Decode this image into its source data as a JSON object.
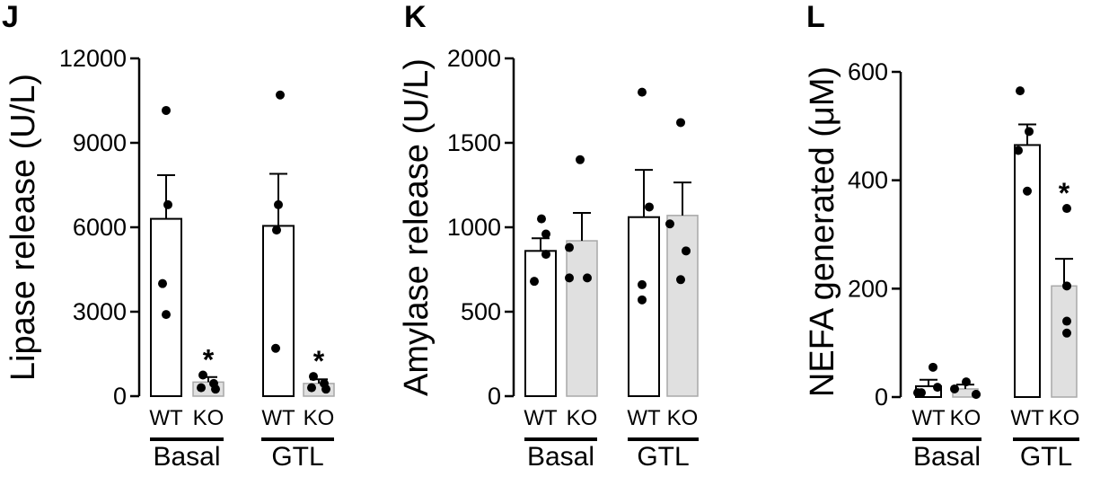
{
  "chart_data": [
    {
      "type": "bar",
      "panel": "J",
      "ylabel": "Lipase release (U/L)",
      "ylim": [
        0,
        12000
      ],
      "yticks": [
        0,
        3000,
        6000,
        9000,
        12000
      ],
      "ytick_labels": [
        "0",
        "3000",
        "6000",
        "9000",
        "12000"
      ],
      "groups": [
        "Basal",
        "GTL"
      ],
      "categories": [
        "WT",
        "KO",
        "WT",
        "KO"
      ],
      "fill_colors": [
        "#ffffff",
        "#e0e0e0"
      ],
      "values": [
        6300,
        500,
        6050,
        450
      ],
      "sem": [
        1550,
        180,
        1850,
        150
      ],
      "points": [
        [
          10150,
          6800,
          4000,
          2900
        ],
        [
          750,
          450,
          300,
          250
        ],
        [
          10700,
          6800,
          5900,
          1700
        ],
        [
          700,
          450,
          300,
          250
        ]
      ],
      "significance": [
        "",
        "*",
        "",
        "*"
      ]
    },
    {
      "type": "bar",
      "panel": "K",
      "ylabel": "Amylase release (U/L)",
      "ylim": [
        0,
        2000
      ],
      "yticks": [
        0,
        500,
        1000,
        1500,
        2000
      ],
      "ytick_labels": [
        "0",
        "500",
        "1000",
        "1500",
        "2000"
      ],
      "groups": [
        "Basal",
        "GTL"
      ],
      "categories": [
        "WT",
        "KO",
        "WT",
        "KO"
      ],
      "fill_colors": [
        "#ffffff",
        "#e0e0e0"
      ],
      "values": [
        860,
        920,
        1060,
        1070
      ],
      "sem": [
        75,
        165,
        280,
        195
      ],
      "points": [
        [
          1050,
          960,
          840,
          680
        ],
        [
          1400,
          880,
          700,
          700
        ],
        [
          1800,
          1120,
          660,
          570
        ],
        [
          1620,
          1020,
          860,
          690
        ]
      ],
      "significance": [
        "",
        "",
        "",
        ""
      ]
    },
    {
      "type": "bar",
      "panel": "L",
      "ylabel": "NEFA generated (μM)",
      "ylim": [
        0,
        600
      ],
      "yticks": [
        0,
        200,
        400,
        600
      ],
      "ytick_labels": [
        "0",
        "200",
        "400",
        "600"
      ],
      "groups": [
        "Basal",
        "GTL"
      ],
      "categories": [
        "WT",
        "KO",
        "WT",
        "KO"
      ],
      "fill_colors": [
        "#ffffff",
        "#e0e0e0"
      ],
      "values": [
        20,
        15,
        465,
        205
      ],
      "sem": [
        12,
        8,
        38,
        50
      ],
      "points": [
        [
          55,
          18,
          8,
          8
        ],
        [
          28,
          15,
          5,
          5
        ],
        [
          565,
          490,
          455,
          380
        ],
        [
          348,
          205,
          140,
          118
        ]
      ],
      "significance": [
        "",
        "",
        "",
        "*"
      ]
    }
  ]
}
